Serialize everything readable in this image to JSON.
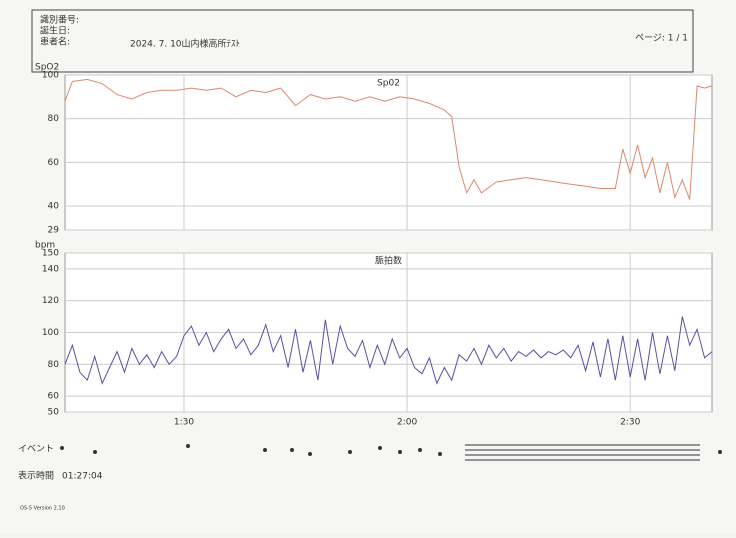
{
  "header": {
    "id_label": "識別番号:",
    "birth_label": "誕生日:",
    "patient_label": "患者名:",
    "patient_name": "2024. 7. 10山内様高所ﾃｽﾄ",
    "page": "ページ: 1 / 1"
  },
  "chart_data": [
    {
      "type": "line",
      "title": "Sp02",
      "y_label": "SpO2",
      "color": "#d98a6c",
      "x": [
        74,
        75,
        77,
        79,
        81,
        83,
        85,
        87,
        89,
        91,
        93,
        95,
        97,
        99,
        101,
        103,
        105,
        107,
        109,
        111,
        113,
        115,
        117,
        119,
        121,
        123,
        125,
        126,
        127,
        128,
        129,
        130,
        132,
        134,
        136,
        138,
        140,
        142,
        144,
        146,
        148,
        149,
        150,
        151,
        152,
        153,
        154,
        155,
        156,
        157,
        158,
        159,
        160,
        161
      ],
      "values": [
        88,
        97,
        98,
        96,
        91,
        89,
        92,
        93,
        93,
        94,
        93,
        94,
        90,
        93,
        92,
        94,
        86,
        91,
        89,
        90,
        88,
        90,
        88,
        90,
        89,
        87,
        84,
        81,
        58,
        46,
        52,
        46,
        51,
        52,
        53,
        52,
        51,
        50,
        49,
        48,
        48,
        66,
        55,
        68,
        53,
        62,
        46,
        60,
        44,
        52,
        43,
        95,
        94,
        95
      ],
      "xlim": [
        74,
        161
      ],
      "ylim": [
        29,
        100
      ],
      "yticks": [
        29,
        40,
        60,
        80,
        100
      ],
      "grid": true
    },
    {
      "type": "line",
      "title": "脈拍数",
      "y_label": "bpm",
      "color": "#5a4fa6",
      "x": [
        74,
        75,
        76,
        77,
        78,
        79,
        80,
        81,
        82,
        83,
        84,
        85,
        86,
        87,
        88,
        89,
        90,
        91,
        92,
        93,
        94,
        95,
        96,
        97,
        98,
        99,
        100,
        101,
        102,
        103,
        104,
        105,
        106,
        107,
        108,
        109,
        110,
        111,
        112,
        113,
        114,
        115,
        116,
        117,
        118,
        119,
        120,
        121,
        122,
        123,
        124,
        125,
        126,
        127,
        128,
        129,
        130,
        131,
        132,
        133,
        134,
        135,
        136,
        137,
        138,
        139,
        140,
        141,
        142,
        143,
        144,
        145,
        146,
        147,
        148,
        149,
        150,
        151,
        152,
        153,
        154,
        155,
        156,
        157,
        158,
        159,
        160,
        161
      ],
      "values": [
        80,
        92,
        75,
        70,
        85,
        68,
        78,
        88,
        75,
        90,
        80,
        86,
        78,
        88,
        80,
        85,
        98,
        104,
        92,
        100,
        88,
        96,
        102,
        90,
        96,
        86,
        92,
        105,
        88,
        98,
        78,
        102,
        75,
        95,
        70,
        108,
        80,
        104,
        90,
        85,
        95,
        78,
        92,
        80,
        96,
        84,
        90,
        78,
        74,
        84,
        68,
        78,
        70,
        86,
        82,
        90,
        80,
        92,
        84,
        90,
        82,
        88,
        85,
        89,
        84,
        88,
        86,
        89,
        84,
        92,
        76,
        94,
        72,
        96,
        70,
        98,
        72,
        96,
        70,
        100,
        74,
        98,
        76,
        110,
        92,
        102,
        84,
        88
      ],
      "xlim": [
        74,
        161
      ],
      "ylim": [
        50,
        150
      ],
      "yticks": [
        50,
        60,
        80,
        100,
        120,
        140,
        150
      ],
      "xticks": [
        {
          "value": 90,
          "label": "1:30"
        },
        {
          "value": 120,
          "label": "2:00"
        },
        {
          "value": 150,
          "label": "2:30"
        }
      ],
      "grid": true
    }
  ],
  "footer": {
    "event_label": "イベント",
    "time_label": "表示時間",
    "time_value": "01:27:04",
    "version": "OS-5 Version 2.10"
  }
}
